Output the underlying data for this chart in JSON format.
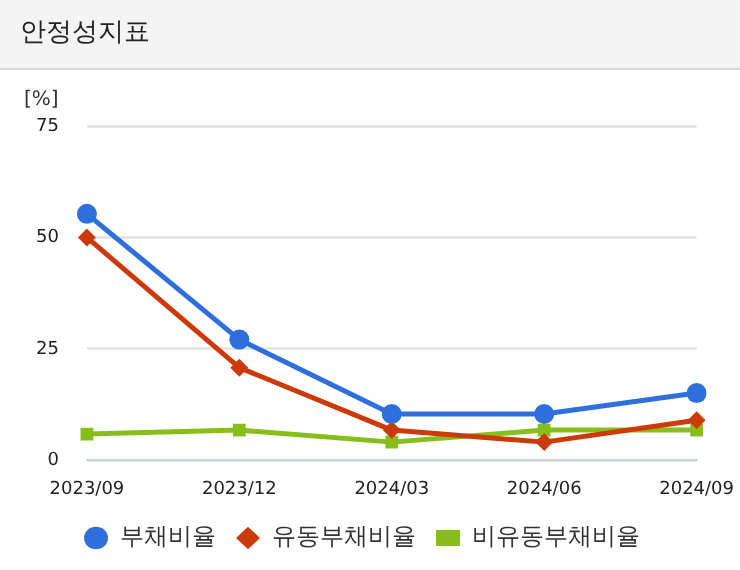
{
  "chart_data": {
    "type": "line",
    "title": "안정성지표",
    "ylabel": "[%]",
    "categories": [
      "2023/09",
      "2023/12",
      "2024/03",
      "2024/06",
      "2024/09"
    ],
    "series": [
      {
        "name": "부채비율",
        "color": "#2f6fdc",
        "marker": "circle",
        "values": [
          55.3,
          27.1,
          10.4,
          10.4,
          15.1
        ]
      },
      {
        "name": "유동부채비율",
        "color": "#cc3a0a",
        "marker": "diamond",
        "values": [
          50,
          20.8,
          6.8,
          4.1,
          9.0
        ]
      },
      {
        "name": "비유동부채비율",
        "color": "#86bf1a",
        "marker": "square",
        "values": [
          5.9,
          6.8,
          4.1,
          6.8,
          6.8
        ]
      }
    ],
    "ylim": [
      0,
      75
    ],
    "yticks": [
      0,
      25,
      50,
      75
    ],
    "grid": "y",
    "legend": "bottom"
  }
}
